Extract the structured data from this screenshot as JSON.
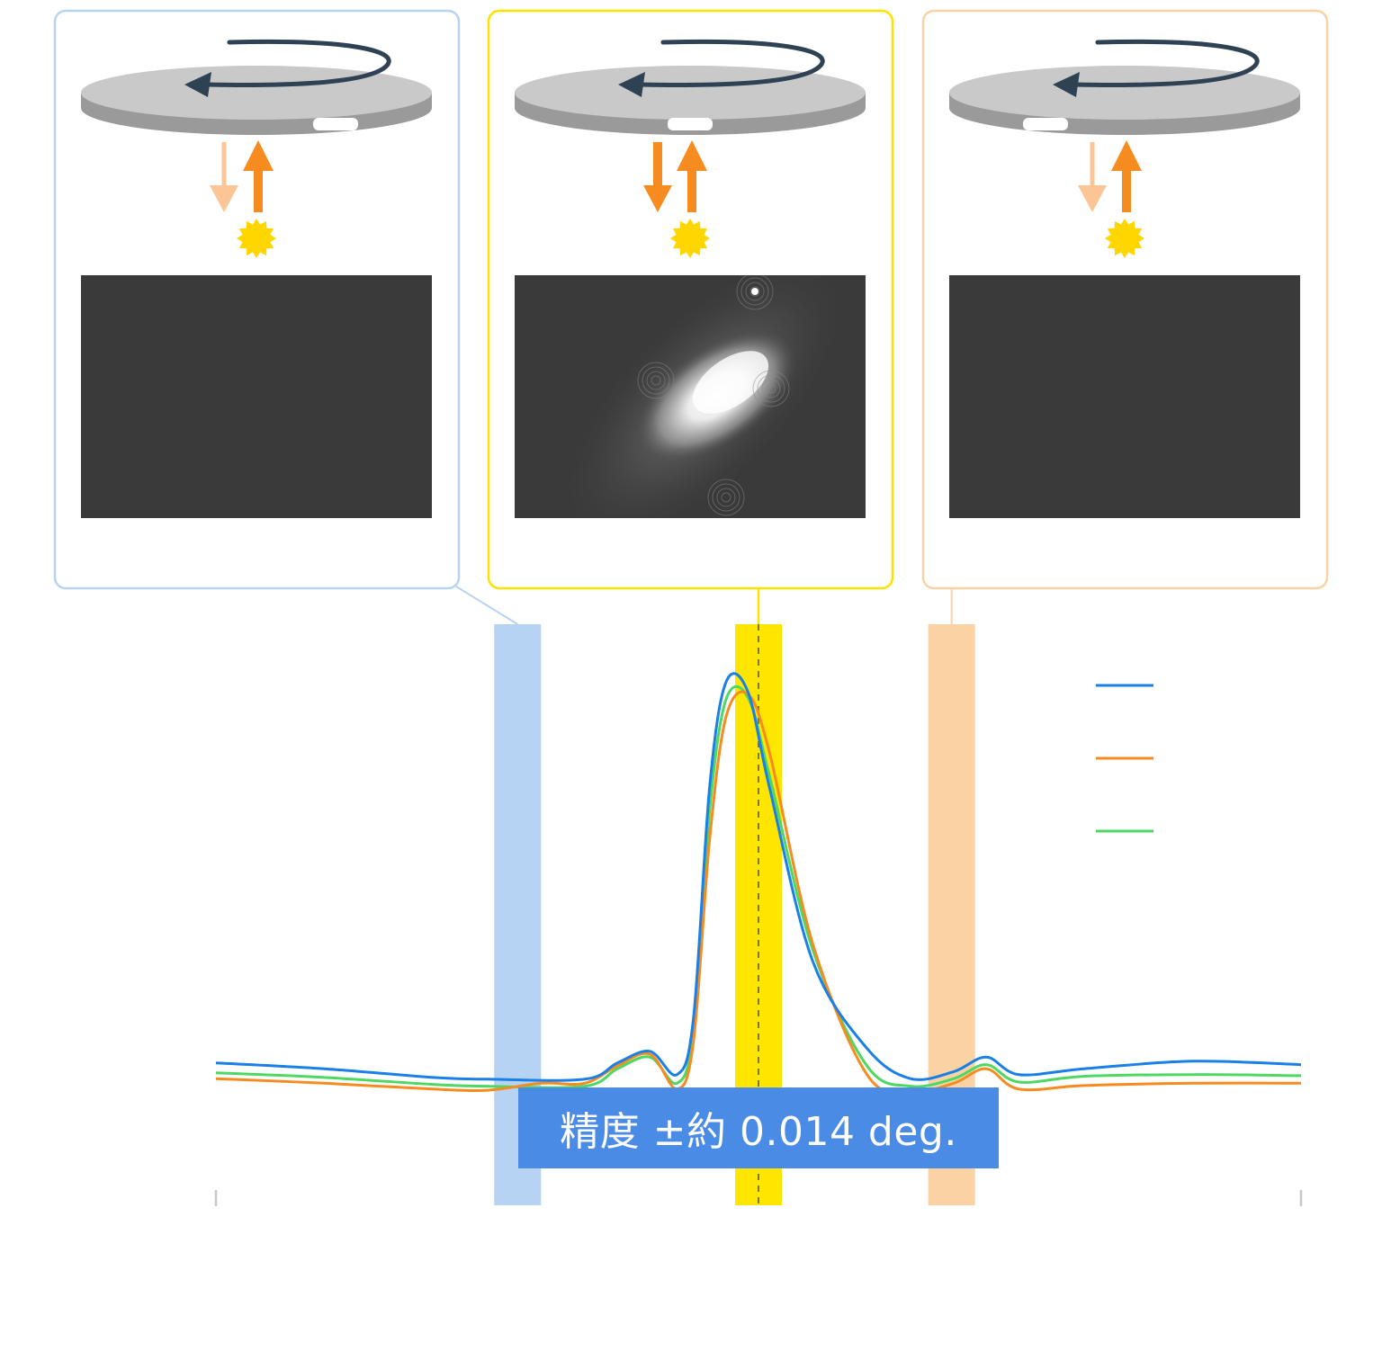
{
  "panels": [
    {
      "id": "before",
      "border_color": "#b7d3f3",
      "reflect_arrow": "faint",
      "camera_image": "dark",
      "slot": "right"
    },
    {
      "id": "aligned",
      "border_color": "#ffe100",
      "reflect_arrow": "strong",
      "camera_image": "bright-speckle",
      "slot": "center"
    },
    {
      "id": "after",
      "border_color": "#fbd2a4",
      "reflect_arrow": "faint",
      "camera_image": "dark",
      "slot": "left"
    }
  ],
  "colors": {
    "disk_top": "#c9c9c9",
    "disk_side": "#9a9a9a",
    "rotation_arrow": "#2f4254",
    "arrow_strong": "#f68b1f",
    "arrow_faint": "#fcc595",
    "light_source": "#ffd600",
    "camera_dark": "#3a3a3a",
    "band_blue": "#b7d3f3",
    "band_yellow": "#ffe600",
    "band_orange": "#fbd2a4",
    "badge": "#4a8be6"
  },
  "icons": [
    "rotation-arrow-icon",
    "laser-down-arrow-icon",
    "laser-up-arrow-icon",
    "light-source-icon"
  ],
  "badge": {
    "text": "精度 ±約 0.014 deg."
  },
  "chart_data": {
    "type": "line",
    "legend_placement": "top-right",
    "grid": false,
    "x_range": [
      0,
      1
    ],
    "y_range": [
      0,
      1
    ],
    "series": [
      {
        "color": "#1a7fe6",
        "points": [
          [
            0,
            0.245
          ],
          [
            0.1,
            0.235
          ],
          [
            0.2,
            0.22
          ],
          [
            0.25,
            0.217
          ],
          [
            0.34,
            0.217
          ],
          [
            0.37,
            0.245
          ],
          [
            0.4,
            0.265
          ],
          [
            0.425,
            0.225
          ],
          [
            0.44,
            0.32
          ],
          [
            0.455,
            0.72
          ],
          [
            0.47,
            0.9
          ],
          [
            0.49,
            0.885
          ],
          [
            0.51,
            0.72
          ],
          [
            0.55,
            0.42
          ],
          [
            0.6,
            0.27
          ],
          [
            0.64,
            0.218
          ],
          [
            0.68,
            0.23
          ],
          [
            0.71,
            0.255
          ],
          [
            0.74,
            0.225
          ],
          [
            0.8,
            0.235
          ],
          [
            0.9,
            0.248
          ],
          [
            1,
            0.242
          ]
        ]
      },
      {
        "color": "#f68b1f",
        "points": [
          [
            0,
            0.218
          ],
          [
            0.1,
            0.21
          ],
          [
            0.2,
            0.2
          ],
          [
            0.25,
            0.198
          ],
          [
            0.3,
            0.21
          ],
          [
            0.34,
            0.21
          ],
          [
            0.37,
            0.24
          ],
          [
            0.4,
            0.26
          ],
          [
            0.425,
            0.2
          ],
          [
            0.44,
            0.28
          ],
          [
            0.455,
            0.63
          ],
          [
            0.47,
            0.84
          ],
          [
            0.49,
            0.88
          ],
          [
            0.51,
            0.78
          ],
          [
            0.55,
            0.45
          ],
          [
            0.6,
            0.225
          ],
          [
            0.64,
            0.195
          ],
          [
            0.68,
            0.21
          ],
          [
            0.71,
            0.235
          ],
          [
            0.74,
            0.2
          ],
          [
            0.8,
            0.206
          ],
          [
            0.9,
            0.21
          ],
          [
            1,
            0.21
          ]
        ]
      },
      {
        "color": "#4ed862",
        "points": [
          [
            0,
            0.228
          ],
          [
            0.1,
            0.22
          ],
          [
            0.2,
            0.208
          ],
          [
            0.25,
            0.205
          ],
          [
            0.34,
            0.205
          ],
          [
            0.37,
            0.235
          ],
          [
            0.4,
            0.255
          ],
          [
            0.425,
            0.21
          ],
          [
            0.44,
            0.3
          ],
          [
            0.455,
            0.68
          ],
          [
            0.47,
            0.87
          ],
          [
            0.49,
            0.875
          ],
          [
            0.51,
            0.74
          ],
          [
            0.55,
            0.44
          ],
          [
            0.6,
            0.24
          ],
          [
            0.64,
            0.205
          ],
          [
            0.68,
            0.218
          ],
          [
            0.71,
            0.242
          ],
          [
            0.74,
            0.212
          ],
          [
            0.8,
            0.222
          ],
          [
            0.9,
            0.225
          ],
          [
            1,
            0.223
          ]
        ]
      }
    ],
    "highlight_bands": [
      {
        "center": 0.278,
        "color": "#b7d3f3"
      },
      {
        "center": 0.5,
        "color": "#ffe600"
      },
      {
        "center": 0.678,
        "color": "#fbd2a4"
      }
    ],
    "reference_line": 0.5
  }
}
